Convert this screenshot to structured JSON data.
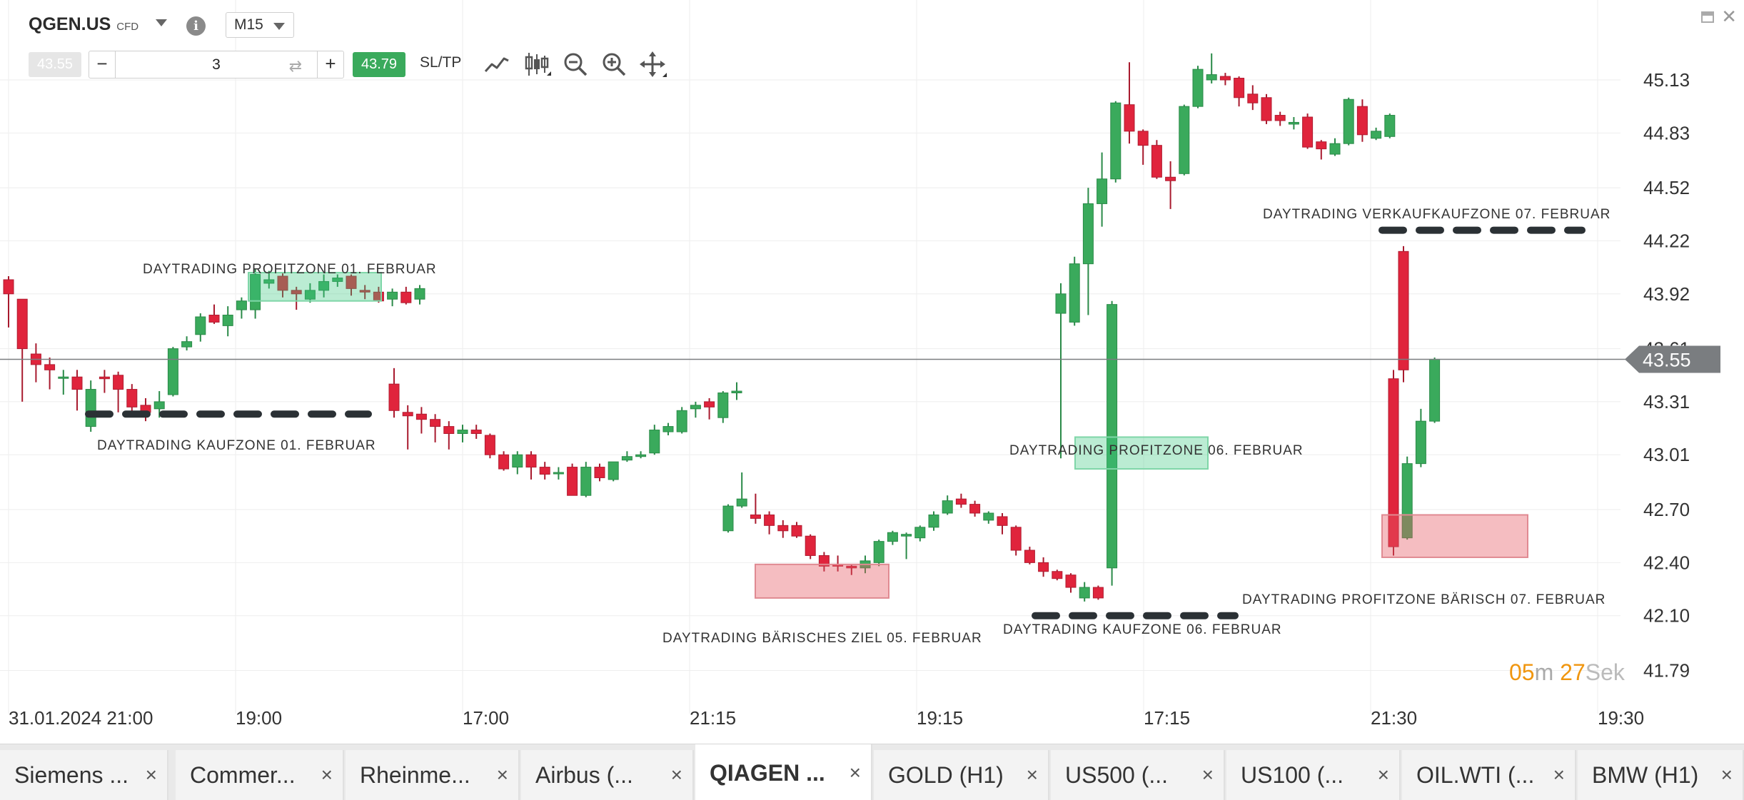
{
  "header": {
    "symbol": "QGEN.US",
    "instrument_type": "CFD",
    "timeframe": "M15",
    "sell_price": "43.55",
    "buy_price": "43.79",
    "quantity": "3",
    "sltp_label": "SL/TP",
    "icons": [
      "info-icon",
      "line-chart-icon",
      "candlestick-icon",
      "zoom-out-icon",
      "zoom-in-icon",
      "move-icon",
      "minimize-icon",
      "close-icon"
    ]
  },
  "chart_data": {
    "type": "candlestick",
    "current_price": "43.55",
    "price_scale": [
      "45.13",
      "44.83",
      "44.52",
      "44.22",
      "43.92",
      "43.61",
      "43.31",
      "43.01",
      "42.70",
      "42.40",
      "42.10",
      "41.79"
    ],
    "time_labels": [
      "31.01.2024 21:00",
      "19:00",
      "17:00",
      "21:15",
      "19:15",
      "17:15",
      "21:30",
      "19:30"
    ],
    "colors": {
      "up": "#3aaa5c",
      "down": "#e0243c",
      "price_tag": "#7a7d80",
      "timer_accent": "#f0960f"
    },
    "zones": [
      {
        "label": "DAYTRADING PROFITZONE 01. FEBRUAR",
        "kind": "green-box"
      },
      {
        "label": "DAYTRADING KAUFZONE 01. FEBRUAR",
        "kind": "dashed-line"
      },
      {
        "label": "DAYTRADING BÄRISCHES ZIEL 05. FEBRUAR",
        "kind": "red-box"
      },
      {
        "label": "DAYTRADING PROFITZONE 06. FEBRUAR",
        "kind": "green-box"
      },
      {
        "label": "DAYTRADING KAUFZONE 06. FEBRUAR",
        "kind": "dashed-line"
      },
      {
        "label": "DAYTRADING VERKAUFKAUFZONE 07. FEBRUAR",
        "kind": "dashed-line"
      },
      {
        "label": "DAYTRADING PROFITZONE BÄRISCH 07. FEBRUAR",
        "kind": "red-box"
      }
    ],
    "candles": [
      [
        44.0,
        43.92,
        44.02,
        43.73
      ],
      [
        43.89,
        43.61,
        43.89,
        43.31
      ],
      [
        43.58,
        43.52,
        43.64,
        43.42
      ],
      [
        43.52,
        43.49,
        43.56,
        43.38
      ],
      [
        43.45,
        43.45,
        43.49,
        43.35
      ],
      [
        43.45,
        43.38,
        43.49,
        43.26
      ],
      [
        43.17,
        43.38,
        43.43,
        43.14
      ],
      [
        43.45,
        43.44,
        43.49,
        43.36
      ],
      [
        43.46,
        43.38,
        43.48,
        43.25
      ],
      [
        43.38,
        43.28,
        43.41,
        43.25
      ],
      [
        43.29,
        43.25,
        43.33,
        43.2
      ],
      [
        43.27,
        43.31,
        43.37,
        43.22
      ],
      [
        43.35,
        43.61,
        43.62,
        43.34
      ],
      [
        43.62,
        43.65,
        43.68,
        43.6
      ],
      [
        43.69,
        43.79,
        43.81,
        43.65
      ],
      [
        43.8,
        43.76,
        43.86,
        43.75
      ],
      [
        43.74,
        43.8,
        43.85,
        43.68
      ],
      [
        43.83,
        43.88,
        43.9,
        43.78
      ],
      [
        43.83,
        44.03,
        44.06,
        43.78
      ],
      [
        43.98,
        44.0,
        44.05,
        43.95
      ],
      [
        44.02,
        43.94,
        44.04,
        43.9
      ],
      [
        43.94,
        43.92,
        43.96,
        43.83
      ],
      [
        43.89,
        43.94,
        43.98,
        43.87
      ],
      [
        43.94,
        43.99,
        44.03,
        43.9
      ],
      [
        43.99,
        44.01,
        44.03,
        43.96
      ],
      [
        44.02,
        43.95,
        44.03,
        43.91
      ],
      [
        43.94,
        43.93,
        43.97,
        43.89
      ],
      [
        43.93,
        43.88,
        43.96,
        43.87
      ],
      [
        43.89,
        43.93,
        43.95,
        43.85
      ],
      [
        43.93,
        43.87,
        43.96,
        43.86
      ],
      [
        43.89,
        43.95,
        43.97,
        43.86
      ],
      [
        43.41,
        43.26,
        43.5,
        43.22
      ],
      [
        43.25,
        43.23,
        43.29,
        43.04
      ],
      [
        43.24,
        43.21,
        43.28,
        43.13
      ],
      [
        43.21,
        43.17,
        43.24,
        43.08
      ],
      [
        43.17,
        43.13,
        43.2,
        43.04
      ],
      [
        43.13,
        43.15,
        43.18,
        43.08
      ],
      [
        43.15,
        43.13,
        43.18,
        43.1
      ],
      [
        43.12,
        43.01,
        43.13,
        42.99
      ],
      [
        43.01,
        42.93,
        43.03,
        42.92
      ],
      [
        42.94,
        43.01,
        43.03,
        42.9
      ],
      [
        43.01,
        42.94,
        43.03,
        42.87
      ],
      [
        42.94,
        42.9,
        42.97,
        42.87
      ],
      [
        42.91,
        42.91,
        42.94,
        42.87
      ],
      [
        42.94,
        42.78,
        42.96,
        42.78
      ],
      [
        42.78,
        42.94,
        42.97,
        42.77
      ],
      [
        42.94,
        42.88,
        42.96,
        42.86
      ],
      [
        42.87,
        42.97,
        42.97,
        42.86
      ],
      [
        42.98,
        43.0,
        43.03,
        42.97
      ],
      [
        43.0,
        43.01,
        43.03,
        42.99
      ],
      [
        43.02,
        43.15,
        43.18,
        43.01
      ],
      [
        43.14,
        43.17,
        43.19,
        43.12
      ],
      [
        43.14,
        43.26,
        43.28,
        43.13
      ],
      [
        43.27,
        43.29,
        43.31,
        43.22
      ],
      [
        43.31,
        43.28,
        43.33,
        43.21
      ],
      [
        43.22,
        43.36,
        43.37,
        43.19
      ],
      [
        43.36,
        43.37,
        43.42,
        43.32
      ],
      [
        42.58,
        42.72,
        42.73,
        42.57
      ],
      [
        42.72,
        42.76,
        42.91,
        42.71
      ],
      [
        42.67,
        42.65,
        42.79,
        42.62
      ],
      [
        42.67,
        42.61,
        42.69,
        42.56
      ],
      [
        42.61,
        42.58,
        42.64,
        42.54
      ],
      [
        42.61,
        42.55,
        42.63,
        42.54
      ],
      [
        42.55,
        42.44,
        42.56,
        42.42
      ],
      [
        42.44,
        42.38,
        42.46,
        42.35
      ],
      [
        42.39,
        42.38,
        42.44,
        42.35
      ],
      [
        42.38,
        42.37,
        42.39,
        42.33
      ],
      [
        42.37,
        42.41,
        42.44,
        42.34
      ],
      [
        42.4,
        42.52,
        42.53,
        42.38
      ],
      [
        42.52,
        42.57,
        42.58,
        42.5
      ],
      [
        42.55,
        42.56,
        42.57,
        42.42
      ],
      [
        42.54,
        42.6,
        42.61,
        42.52
      ],
      [
        42.6,
        42.67,
        42.69,
        42.58
      ],
      [
        42.68,
        42.75,
        42.78,
        42.67
      ],
      [
        42.76,
        42.73,
        42.79,
        42.71
      ],
      [
        42.73,
        42.68,
        42.75,
        42.66
      ],
      [
        42.64,
        42.68,
        42.69,
        42.62
      ],
      [
        42.66,
        42.61,
        42.68,
        42.56
      ],
      [
        42.6,
        42.47,
        42.61,
        42.44
      ],
      [
        42.47,
        42.4,
        42.49,
        42.39
      ],
      [
        42.4,
        42.35,
        42.43,
        42.32
      ],
      [
        42.35,
        42.31,
        42.36,
        42.3
      ],
      [
        42.33,
        42.26,
        42.34,
        42.23
      ],
      [
        42.2,
        42.26,
        42.29,
        42.18
      ],
      [
        42.26,
        42.2,
        42.27,
        42.19
      ],
      [
        42.37,
        43.86,
        43.88,
        42.27
      ],
      [
        43.81,
        43.92,
        43.98,
        42.99
      ],
      [
        43.76,
        44.09,
        44.13,
        43.74
      ],
      [
        44.09,
        44.43,
        44.52,
        43.8
      ],
      [
        44.43,
        44.57,
        44.72,
        44.3
      ],
      [
        44.57,
        45.0,
        45.01,
        44.55
      ],
      [
        44.99,
        44.84,
        45.23,
        44.77
      ],
      [
        44.84,
        44.76,
        44.85,
        44.65
      ],
      [
        44.76,
        44.58,
        44.79,
        44.57
      ],
      [
        44.58,
        44.56,
        44.67,
        44.4
      ],
      [
        44.6,
        44.98,
        44.99,
        44.59
      ],
      [
        44.98,
        45.19,
        45.21,
        44.97
      ],
      [
        45.13,
        45.16,
        45.28,
        45.11
      ],
      [
        45.15,
        45.13,
        45.17,
        45.1
      ],
      [
        45.14,
        45.03,
        45.15,
        44.98
      ],
      [
        45.05,
        45.0,
        45.1,
        44.96
      ],
      [
        45.03,
        44.9,
        45.05,
        44.88
      ],
      [
        44.93,
        44.9,
        44.95,
        44.87
      ],
      [
        44.88,
        44.89,
        44.92,
        44.85
      ],
      [
        44.92,
        44.75,
        44.94,
        44.74
      ],
      [
        44.78,
        44.74,
        44.79,
        44.68
      ],
      [
        44.71,
        44.77,
        44.8,
        44.7
      ],
      [
        44.77,
        45.02,
        45.03,
        44.76
      ],
      [
        44.98,
        44.82,
        45.02,
        44.78
      ],
      [
        44.8,
        44.84,
        44.86,
        44.79
      ],
      [
        44.81,
        44.93,
        44.94,
        44.8
      ],
      [
        44.16,
        43.49,
        44.19,
        43.42
      ],
      [
        43.44,
        42.49,
        43.49,
        42.44
      ],
      [
        42.54,
        42.96,
        43.0,
        42.53
      ],
      [
        42.96,
        43.2,
        43.27,
        42.94
      ],
      [
        43.2,
        43.55,
        43.56,
        43.19
      ]
    ]
  },
  "timer": {
    "minutes": "05",
    "m_label": "m",
    "seconds": "27",
    "s_label": "Sek"
  },
  "tabs": [
    {
      "label": "Siemens ..."
    },
    {
      "label": "Commer..."
    },
    {
      "label": "Rheinme..."
    },
    {
      "label": "Airbus (..."
    },
    {
      "label": "QIAGEN ..."
    },
    {
      "label": "GOLD (H1)"
    },
    {
      "label": "US500 (..."
    },
    {
      "label": "US100 (..."
    },
    {
      "label": "OIL.WTI (..."
    },
    {
      "label": "BMW (H1)"
    }
  ],
  "active_tab": "QIAGEN ..."
}
